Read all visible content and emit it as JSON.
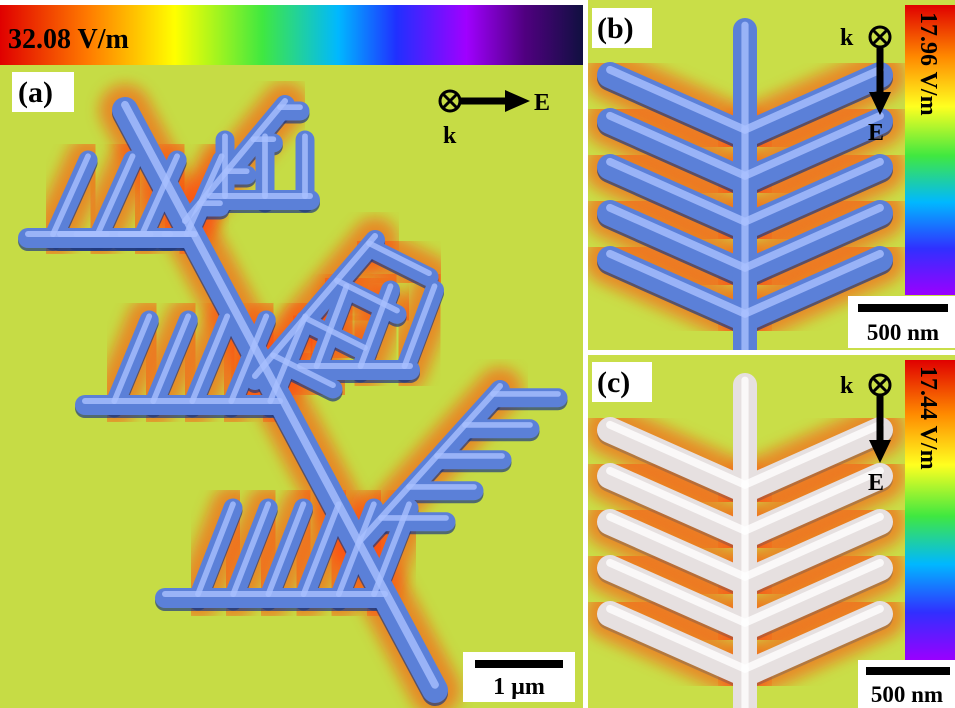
{
  "panels": [
    {
      "label": "(a)",
      "colorbar_label": "32.08 V/m",
      "wave_vector": "k",
      "field": "E",
      "scale_bar": "1 µm"
    },
    {
      "label": "(b)",
      "colorbar_label": "17.96 V/m",
      "wave_vector": "k",
      "field": "E",
      "scale_bar": "500 nm"
    },
    {
      "label": "(c)",
      "colorbar_label": "17.44 V/m",
      "wave_vector": "k",
      "field": "E",
      "scale_bar": "500 nm"
    }
  ]
}
